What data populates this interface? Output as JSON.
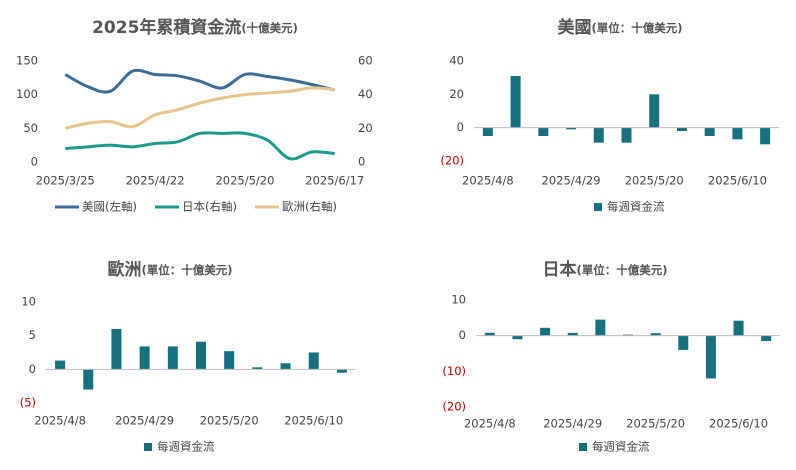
{
  "chart_data": [
    {
      "type": "line",
      "title": "2025年累積資金流",
      "subtitle": "(十億美元)",
      "categories": [
        "2025/3/25",
        null,
        null,
        null,
        "2025/4/22",
        null,
        null,
        null,
        "2025/5/20",
        null,
        null,
        null,
        "2025/6/17"
      ],
      "ylim": [
        0,
        150
      ],
      "yticks": [
        0,
        50,
        100,
        150
      ],
      "y2lim": [
        0,
        60
      ],
      "y2ticks": [
        0,
        20,
        40,
        60
      ],
      "legend": "bottom",
      "series": [
        {
          "name": "美國(左軸)",
          "color": "#3d6b98",
          "values": [
            130,
            112,
            105,
            135,
            130,
            128,
            120,
            110,
            130,
            127,
            122,
            115,
            107
          ]
        },
        {
          "name": "日本(右軸)",
          "color": "#1a9a8e",
          "axis": "y2",
          "values": [
            8,
            9,
            10,
            9,
            11,
            12,
            17,
            17,
            17,
            13,
            2,
            6,
            5
          ]
        },
        {
          "name": "歐洲(右軸)",
          "color": "#e8c48c",
          "axis": "y2",
          "values": [
            20,
            23,
            24,
            21,
            28,
            31,
            35,
            38,
            40,
            41,
            42,
            44,
            43
          ]
        }
      ]
    },
    {
      "type": "bar",
      "title": "美國",
      "subtitle": "(單位：十億美元)",
      "categories": [
        "2025/4/8",
        null,
        null,
        "2025/4/29",
        null,
        null,
        "2025/5/20",
        null,
        null,
        "2025/6/10",
        null
      ],
      "ylim": [
        -20,
        40
      ],
      "yticks": [
        {
          "value": -20,
          "label": "(20)"
        },
        0,
        20,
        40
      ],
      "negative_label_color": "#c00000",
      "legend": "bottom",
      "series": [
        {
          "name": "每週資金流",
          "color": "#17707f",
          "values": [
            -5,
            31,
            -5,
            -1,
            -9,
            -9,
            20,
            -2,
            -5,
            -7,
            -10
          ]
        }
      ]
    },
    {
      "type": "bar",
      "title": "歐洲",
      "subtitle": "(單位：十億美元)",
      "categories": [
        "2025/4/8",
        null,
        null,
        "2025/4/29",
        null,
        null,
        "2025/5/20",
        null,
        null,
        "2025/6/10",
        null
      ],
      "ylim": [
        -5,
        10
      ],
      "yticks": [
        {
          "value": -5,
          "label": "(5)"
        },
        0,
        5,
        10
      ],
      "negative_label_color": "#c00000",
      "legend": "bottom",
      "series": [
        {
          "name": "每週資金流",
          "color": "#17707f",
          "values": [
            1.3,
            -3,
            6,
            3.4,
            3.4,
            4.1,
            2.7,
            0.3,
            0.9,
            2.5,
            -0.5
          ]
        }
      ]
    },
    {
      "type": "bar",
      "title": "日本",
      "subtitle": "(單位：十億美元)",
      "categories": [
        "2025/4/8",
        null,
        null,
        "2025/4/29",
        null,
        null,
        "2025/5/20",
        null,
        null,
        "2025/6/10",
        null
      ],
      "ylim": [
        -20,
        10
      ],
      "yticks": [
        {
          "value": -20,
          "label": "(20)"
        },
        {
          "value": -10,
          "label": "(10)"
        },
        0,
        10
      ],
      "negative_label_color": "#c00000",
      "legend": "bottom",
      "series": [
        {
          "name": "每週資金流",
          "color": "#17707f",
          "values": [
            0.8,
            -1,
            2.2,
            0.8,
            4.5,
            0.3,
            0.7,
            -4,
            -12,
            4.2,
            -1.5
          ]
        }
      ]
    }
  ]
}
